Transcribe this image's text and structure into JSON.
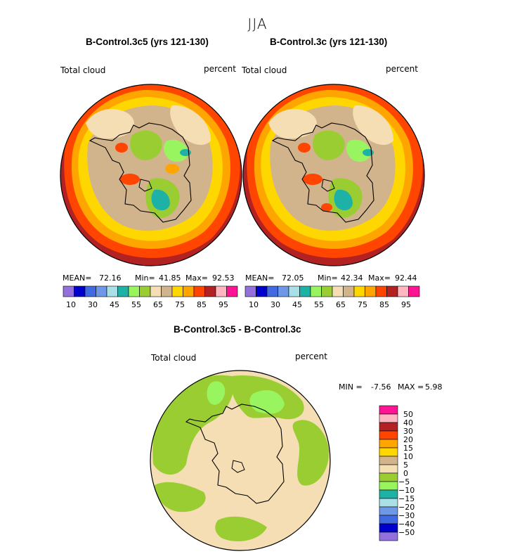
{
  "season": "JJA",
  "panels": [
    {
      "title": "B-Control.3c5 (yrs 121-130)",
      "var_label": "Total cloud",
      "units": "percent",
      "stats": {
        "mean_label": "MEAN=",
        "mean": "72.16",
        "min_label": "Min=",
        "min": "41.85",
        "max_label": "Max=",
        "max": "92.53"
      }
    },
    {
      "title": "B-Control.3c (yrs 121-130)",
      "var_label": "Total cloud",
      "units": "percent",
      "stats": {
        "mean_label": "MEAN=",
        "mean": "72.05",
        "min_label": "Min=",
        "min": "42.34",
        "max_label": "Max=",
        "max": "92.44"
      }
    },
    {
      "title": "B-Control.3c5 - B-Control.3c",
      "var_label": "Total cloud",
      "units": "percent",
      "stats": {
        "min_label": "MIN =",
        "min": "-7.56",
        "max_label": "MAX =",
        "max": "5.98"
      }
    }
  ],
  "chart_data": [
    {
      "type": "heatmap",
      "projection": "south-polar-stereographic",
      "title": "B-Control.3c5 (yrs 121-130)",
      "variable": "Total cloud",
      "units": "percent",
      "mean": 72.16,
      "min": 41.85,
      "max": 92.53
    },
    {
      "type": "heatmap",
      "projection": "south-polar-stereographic",
      "title": "B-Control.3c (yrs 121-130)",
      "variable": "Total cloud",
      "units": "percent",
      "mean": 72.05,
      "min": 42.34,
      "max": 92.44
    },
    {
      "type": "heatmap",
      "projection": "south-polar-stereographic",
      "title": "B-Control.3c5 - B-Control.3c",
      "variable": "Total cloud",
      "units": "percent",
      "min": -7.56,
      "max": 5.98
    }
  ],
  "field_colorbar": {
    "colors": [
      "#9370db",
      "#0000cd",
      "#4169e1",
      "#6f97e8",
      "#a9dfe6",
      "#1eb2a6",
      "#98f560",
      "#9acd32",
      "#f5deb3",
      "#d2b48c",
      "#ffd700",
      "#ffa500",
      "#ff4500",
      "#b22222",
      "#ffb6c1",
      "#ff1493"
    ],
    "ticks": [
      "10",
      "30",
      "45",
      "55",
      "65",
      "75",
      "85",
      "95"
    ]
  },
  "diff_colorbar": {
    "colors": [
      "#ff1493",
      "#ffb6c1",
      "#b22222",
      "#ff4500",
      "#ffa500",
      "#ffd700",
      "#d2b48c",
      "#f5deb3",
      "#9acd32",
      "#98f560",
      "#1eb2a6",
      "#a9dfe6",
      "#6f97e8",
      "#4169e1",
      "#0000cd",
      "#9370db"
    ],
    "labels": [
      "50",
      "40",
      "30",
      "20",
      "15",
      "10",
      "5",
      "0",
      "−5",
      "−10",
      "−15",
      "−20",
      "−30",
      "−40",
      "−50"
    ]
  }
}
